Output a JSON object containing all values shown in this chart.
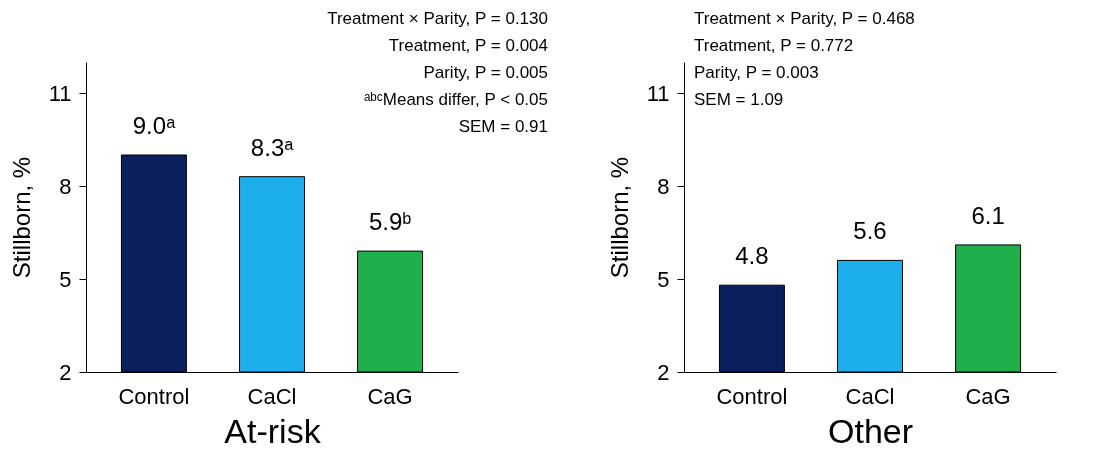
{
  "chart_data": [
    {
      "type": "bar",
      "xlabel": "At-risk",
      "ylabel": "Stillborn, %",
      "categories": [
        "Control",
        "CaCl",
        "CaG"
      ],
      "values": [
        9.0,
        8.3,
        5.9
      ],
      "colors": [
        "#0b1f5e",
        "#1caeed",
        "#1fb04b"
      ],
      "value_labels": [
        "9.0ᵃ",
        "8.3ᵃ",
        "5.9ᵇ"
      ],
      "ylim": [
        2,
        12
      ],
      "yticks": [
        2,
        5,
        8,
        11
      ],
      "grid": false,
      "legend": false,
      "annotations": [
        "Treatment × Parity, P = 0.130",
        "Treatment, P = 0.004",
        "Parity, P = 0.005",
        "ᵃᵇᶜMeans differ, P < 0.05",
        "SEM = 0.91"
      ]
    },
    {
      "type": "bar",
      "xlabel": "Other",
      "ylabel": "Stillborn, %",
      "categories": [
        "Control",
        "CaCl",
        "CaG"
      ],
      "values": [
        4.8,
        5.6,
        6.1
      ],
      "colors": [
        "#0b1f5e",
        "#1caeed",
        "#1fb04b"
      ],
      "data_labels": true,
      "ylim": [
        2,
        12
      ],
      "yticks": [
        2,
        5,
        8,
        11
      ],
      "grid": false,
      "legend": false,
      "annotations": [
        "Treatment × Parity, P = 0.468",
        "Treatment, P = 0.772",
        "Parity, P = 0.003",
        "SEM = 1.09"
      ]
    }
  ]
}
